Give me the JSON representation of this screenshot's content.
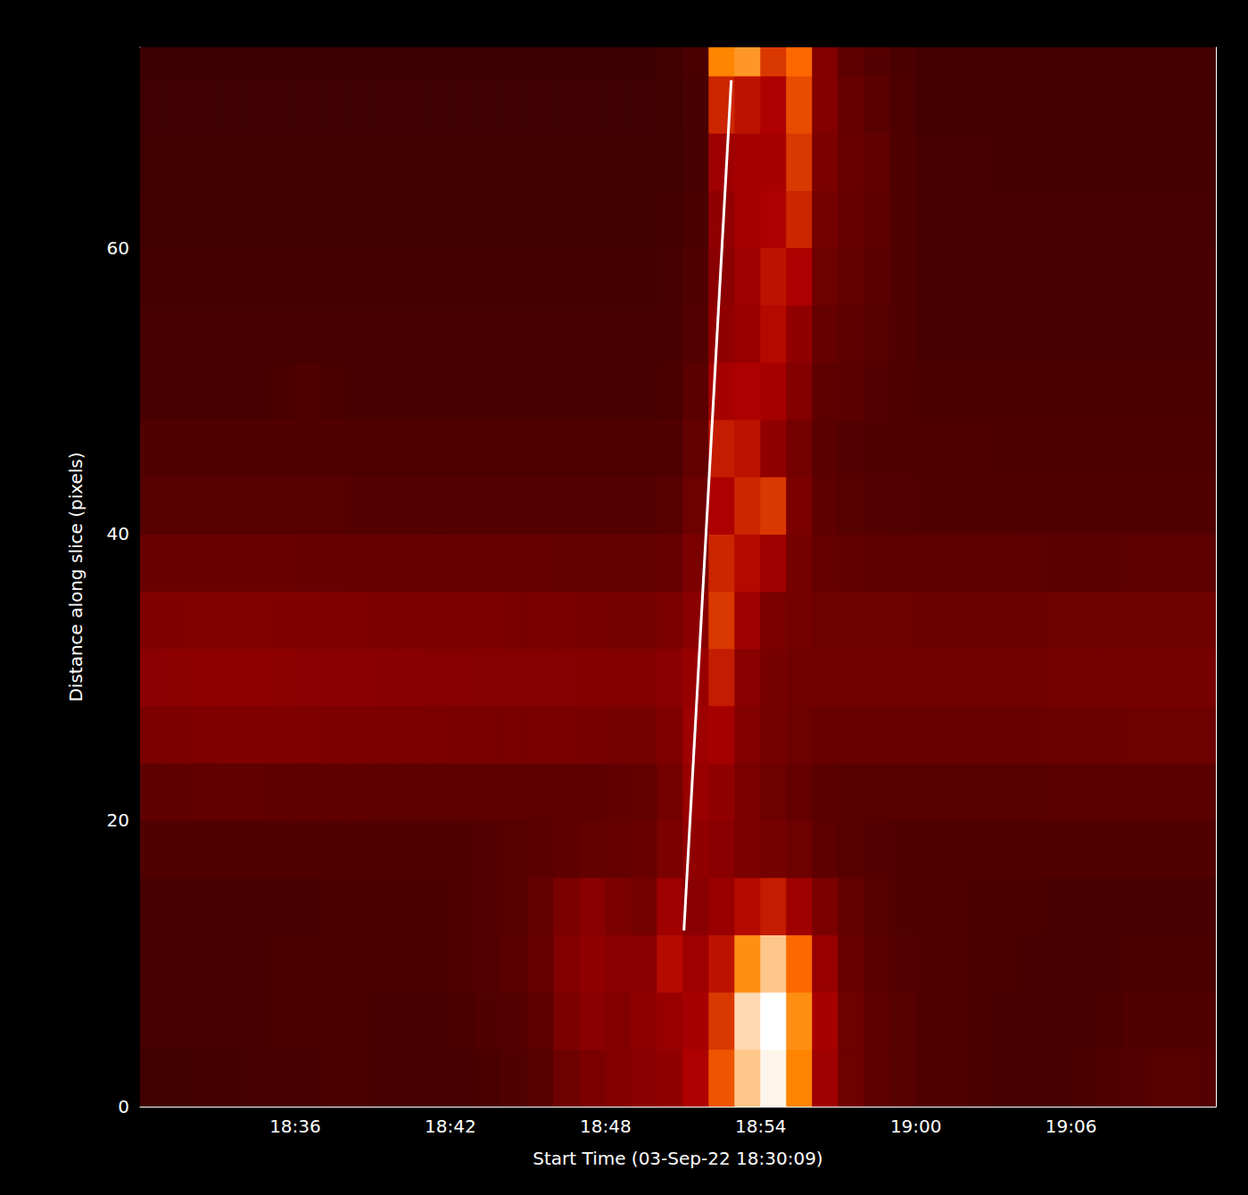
{
  "chart_data": {
    "type": "heatmap",
    "x_label": "Start Time (03-Sep-22 18:30:09)",
    "y_label": "Distance along slice (pixels)",
    "xlim": [
      0,
      41.6
    ],
    "ylim": [
      0,
      74
    ],
    "xticks": [
      {
        "value": 6,
        "label": "18:36"
      },
      {
        "value": 12,
        "label": "18:42"
      },
      {
        "value": 18,
        "label": "18:48"
      },
      {
        "value": 24,
        "label": "18:54"
      },
      {
        "value": 30,
        "label": "19:00"
      },
      {
        "value": 36,
        "label": "19:06"
      }
    ],
    "yticks": [
      0,
      20,
      40,
      60
    ],
    "zlim": [
      0,
      255
    ],
    "x_bins": [
      0,
      1,
      2,
      3,
      4,
      5,
      6,
      7,
      8,
      9,
      10,
      11,
      12,
      13,
      14,
      15,
      16,
      17,
      18,
      19,
      20,
      21,
      22,
      23,
      24,
      25,
      26,
      27,
      28,
      29,
      30,
      31,
      32,
      33,
      34,
      35,
      36,
      37,
      38,
      39,
      40,
      41,
      42
    ],
    "y_bins": [
      0,
      4,
      8,
      12,
      16,
      20,
      24,
      28,
      32,
      36,
      40,
      44,
      48,
      52,
      56,
      60,
      64,
      68,
      72,
      76
    ],
    "z": [
      [
        45,
        45,
        46,
        46,
        48,
        50,
        50,
        52,
        52,
        50,
        48,
        48,
        50,
        52,
        55,
        60,
        75,
        85,
        90,
        95,
        100,
        120,
        165,
        225,
        250,
        190,
        110,
        75,
        65,
        60,
        55,
        55,
        52,
        50,
        50,
        50,
        52,
        55,
        58,
        60,
        60,
        58
      ],
      [
        48,
        48,
        48,
        50,
        50,
        52,
        52,
        52,
        52,
        50,
        50,
        50,
        52,
        55,
        58,
        65,
        85,
        95,
        90,
        100,
        105,
        115,
        150,
        235,
        255,
        195,
        115,
        75,
        65,
        60,
        55,
        55,
        52,
        50,
        50,
        50,
        50,
        52,
        55,
        55,
        55,
        55
      ],
      [
        50,
        50,
        50,
        50,
        50,
        52,
        52,
        52,
        52,
        52,
        52,
        52,
        55,
        58,
        62,
        70,
        90,
        100,
        95,
        95,
        125,
        110,
        130,
        195,
        225,
        175,
        105,
        72,
        62,
        58,
        55,
        54,
        52,
        52,
        50,
        50,
        50,
        50,
        52,
        52,
        52,
        52
      ],
      [
        50,
        50,
        50,
        50,
        50,
        50,
        50,
        52,
        52,
        52,
        52,
        52,
        55,
        58,
        60,
        68,
        85,
        95,
        85,
        80,
        110,
        95,
        105,
        125,
        135,
        110,
        85,
        68,
        60,
        56,
        54,
        54,
        52,
        52,
        52,
        50,
        50,
        50,
        50,
        50,
        50,
        50
      ],
      [
        55,
        55,
        55,
        55,
        55,
        55,
        55,
        55,
        55,
        55,
        55,
        55,
        56,
        58,
        60,
        62,
        65,
        68,
        70,
        72,
        85,
        100,
        95,
        85,
        80,
        75,
        65,
        60,
        58,
        56,
        55,
        55,
        55,
        55,
        55,
        55,
        55,
        55,
        55,
        55,
        55,
        55
      ],
      [
        65,
        65,
        66,
        66,
        66,
        65,
        65,
        65,
        65,
        64,
        64,
        64,
        64,
        64,
        64,
        64,
        64,
        65,
        66,
        68,
        80,
        105,
        100,
        85,
        75,
        70,
        62,
        60,
        60,
        60,
        60,
        60,
        60,
        60,
        60,
        62,
        62,
        62,
        62,
        62,
        62,
        62
      ],
      [
        85,
        86,
        87,
        88,
        88,
        88,
        87,
        86,
        86,
        85,
        85,
        85,
        84,
        84,
        84,
        84,
        84,
        83,
        82,
        82,
        88,
        110,
        115,
        90,
        80,
        75,
        72,
        72,
        72,
        72,
        72,
        72,
        72,
        72,
        72,
        74,
        74,
        74,
        75,
        75,
        75,
        75
      ],
      [
        96,
        97,
        98,
        98,
        98,
        97,
        96,
        95,
        95,
        94,
        94,
        93,
        93,
        92,
        92,
        92,
        92,
        91,
        90,
        90,
        95,
        105,
        135,
        95,
        82,
        78,
        78,
        78,
        78,
        78,
        78,
        78,
        78,
        78,
        78,
        80,
        80,
        80,
        82,
        82,
        82,
        82
      ],
      [
        88,
        88,
        89,
        89,
        89,
        88,
        88,
        87,
        87,
        86,
        86,
        85,
        85,
        85,
        84,
        84,
        84,
        83,
        82,
        82,
        85,
        95,
        150,
        110,
        85,
        80,
        76,
        75,
        75,
        75,
        74,
        74,
        74,
        74,
        74,
        75,
        75,
        75,
        76,
        76,
        76,
        76
      ],
      [
        72,
        72,
        72,
        72,
        72,
        72,
        71,
        71,
        70,
        70,
        70,
        70,
        69,
        69,
        69,
        69,
        68,
        68,
        68,
        68,
        70,
        85,
        140,
        125,
        110,
        80,
        70,
        66,
        65,
        65,
        65,
        65,
        64,
        64,
        64,
        63,
        63,
        63,
        64,
        64,
        64,
        64
      ],
      [
        60,
        60,
        60,
        60,
        60,
        60,
        60,
        60,
        59,
        59,
        59,
        58,
        58,
        58,
        58,
        58,
        58,
        58,
        58,
        58,
        60,
        75,
        120,
        140,
        150,
        85,
        65,
        60,
        58,
        57,
        56,
        56,
        56,
        56,
        55,
        55,
        55,
        55,
        55,
        55,
        55,
        55
      ],
      [
        55,
        55,
        55,
        55,
        55,
        55,
        55,
        55,
        54,
        54,
        54,
        54,
        54,
        54,
        54,
        54,
        54,
        54,
        54,
        54,
        55,
        68,
        135,
        130,
        100,
        80,
        62,
        58,
        56,
        55,
        54,
        54,
        54,
        53,
        53,
        53,
        53,
        53,
        53,
        53,
        53,
        53
      ],
      [
        50,
        50,
        50,
        50,
        50,
        52,
        55,
        52,
        50,
        50,
        50,
        50,
        50,
        50,
        50,
        50,
        50,
        50,
        50,
        50,
        52,
        62,
        115,
        120,
        115,
        90,
        65,
        62,
        58,
        54,
        52,
        52,
        52,
        52,
        52,
        52,
        52,
        52,
        52,
        52,
        52,
        52
      ],
      [
        48,
        48,
        48,
        48,
        48,
        48,
        48,
        48,
        48,
        48,
        48,
        48,
        48,
        48,
        48,
        48,
        48,
        48,
        48,
        48,
        50,
        58,
        100,
        105,
        125,
        100,
        70,
        65,
        60,
        55,
        50,
        50,
        50,
        50,
        50,
        50,
        50,
        50,
        50,
        50,
        50,
        50
      ],
      [
        46,
        46,
        46,
        46,
        46,
        46,
        46,
        46,
        46,
        46,
        46,
        46,
        46,
        46,
        46,
        46,
        46,
        46,
        46,
        46,
        48,
        55,
        95,
        110,
        130,
        120,
        75,
        68,
        62,
        55,
        50,
        50,
        50,
        49,
        49,
        49,
        49,
        49,
        50,
        50,
        50,
        50
      ],
      [
        45,
        45,
        45,
        45,
        45,
        45,
        45,
        45,
        45,
        45,
        45,
        45,
        45,
        45,
        45,
        45,
        45,
        45,
        45,
        45,
        46,
        52,
        100,
        115,
        120,
        140,
        80,
        70,
        65,
        56,
        49,
        49,
        49,
        48,
        48,
        48,
        48,
        48,
        48,
        48,
        48,
        48
      ],
      [
        44,
        44,
        44,
        44,
        44,
        44,
        44,
        44,
        44,
        44,
        44,
        44,
        44,
        44,
        44,
        44,
        44,
        44,
        44,
        44,
        45,
        50,
        110,
        115,
        115,
        150,
        85,
        72,
        66,
        56,
        48,
        48,
        48,
        47,
        47,
        47,
        47,
        47,
        47,
        47,
        47,
        47
      ],
      [
        43,
        43,
        43,
        43,
        43,
        43,
        43,
        43,
        43,
        43,
        43,
        43,
        43,
        43,
        43,
        43,
        43,
        43,
        43,
        43,
        44,
        50,
        140,
        130,
        120,
        160,
        90,
        70,
        62,
        54,
        47,
        47,
        47,
        46,
        46,
        46,
        46,
        46,
        46,
        46,
        46,
        46
      ],
      [
        42,
        42,
        42,
        42,
        42,
        42,
        42,
        42,
        42,
        42,
        42,
        42,
        42,
        42,
        42,
        42,
        42,
        42,
        42,
        42,
        44,
        52,
        190,
        200,
        150,
        175,
        90,
        65,
        58,
        52,
        46,
        46,
        46,
        46,
        46,
        46,
        46,
        46,
        46,
        46,
        46,
        46
      ]
    ],
    "line": {
      "type": "line",
      "color": "#ffffff",
      "x": [
        21.03,
        22.86
      ],
      "y": [
        12.3,
        71.7
      ]
    }
  }
}
